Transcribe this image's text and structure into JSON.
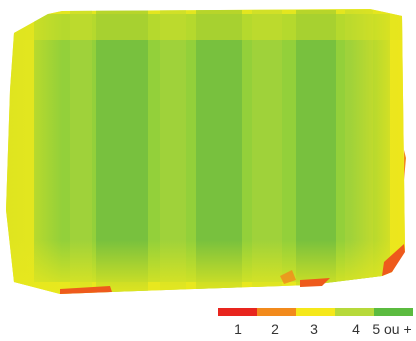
{
  "chart_data": {
    "type": "heatmap",
    "title": "",
    "legend": {
      "placement": "bottom-right",
      "entries": [
        {
          "label": "1",
          "color": "#e8251e"
        },
        {
          "label": "2",
          "color": "#f28a1c"
        },
        {
          "label": "3",
          "color": "#f5e81a"
        },
        {
          "label": "4",
          "color": "#b6d93a"
        },
        {
          "label": "5 ou +",
          "color": "#5bbb3f"
        }
      ]
    },
    "map_colors": {
      "background": "#e6e81f",
      "dominant": "#8ccd3d",
      "peak": "#6ab840",
      "edge_low": "#ee5a1c"
    }
  }
}
